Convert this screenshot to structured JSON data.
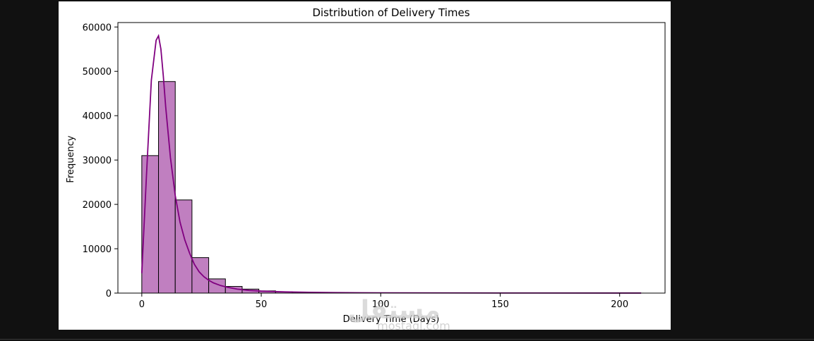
{
  "chart_data": {
    "type": "bar",
    "subtype": "histogram-with-kde",
    "title": "Distribution of Delivery Times",
    "xlabel": "Delivery Time (Days)",
    "ylabel": "Frequency",
    "xlim": [
      -10,
      219
    ],
    "ylim": [
      0,
      61000
    ],
    "xticks": [
      0,
      50,
      100,
      150,
      200
    ],
    "yticks": [
      0,
      10000,
      20000,
      30000,
      40000,
      50000,
      60000
    ],
    "grid": false,
    "bar_color": "#c07fc0",
    "bar_edge_color": "#000000",
    "kde_color": "#800080",
    "bin_edges": [
      0,
      7,
      14,
      21,
      28,
      35,
      42,
      49,
      56,
      63,
      70,
      77,
      84,
      91,
      98,
      105,
      112,
      119,
      126,
      133,
      140,
      147,
      154,
      161,
      168,
      175,
      182,
      189,
      196,
      203,
      210
    ],
    "values": [
      31000,
      47700,
      21000,
      8000,
      3200,
      1500,
      900,
      500,
      300,
      200,
      150,
      100,
      80,
      60,
      40,
      30,
      25,
      20,
      15,
      12,
      10,
      8,
      6,
      5,
      4,
      3,
      3,
      2,
      2,
      2
    ],
    "kde": {
      "x": [
        0,
        2,
        4,
        6,
        7,
        8,
        9,
        10,
        12,
        14,
        16,
        18,
        20,
        22,
        24,
        26,
        28,
        30,
        33,
        36,
        40,
        45,
        50,
        60,
        70,
        80,
        100,
        150,
        209
      ],
      "y": [
        4500,
        27000,
        48000,
        57000,
        58000,
        55000,
        49000,
        42000,
        30500,
        22000,
        16000,
        12000,
        9000,
        6500,
        4800,
        3700,
        2900,
        2300,
        1700,
        1300,
        900,
        600,
        450,
        280,
        170,
        110,
        60,
        25,
        10
      ]
    }
  },
  "watermark": {
    "text_ar": "مستقل",
    "text_lat": "mostaql.com"
  }
}
